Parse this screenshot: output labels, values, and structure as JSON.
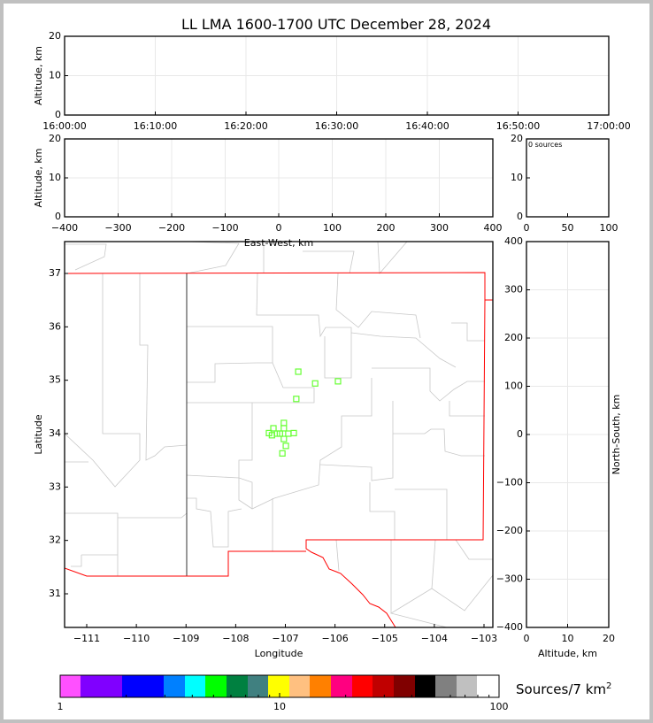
{
  "title": "LL LMA 1600-1700 UTC December 28, 2024",
  "chart_data": [
    {
      "type": "scatter",
      "panel": "altitude-vs-time",
      "ylabel": "Altitude, km",
      "ylim": [
        0,
        20
      ],
      "yticks": [
        "0",
        "10",
        "20"
      ],
      "xlim": [
        "16:00:00",
        "17:00:00"
      ],
      "xticks": [
        "16:00:00",
        "16:10:00",
        "16:20:00",
        "16:30:00",
        "16:40:00",
        "16:50:00",
        "17:00:00"
      ],
      "grid": true,
      "points": []
    },
    {
      "type": "scatter",
      "panel": "altitude-vs-east-west",
      "xlabel": "East-West, km",
      "ylabel": "Altitude, km",
      "xlim": [
        -400,
        400
      ],
      "ylim": [
        0,
        20
      ],
      "xticks": [
        "-400",
        "-300",
        "-200",
        "-100",
        "0",
        "100",
        "200",
        "300",
        "400"
      ],
      "yticks": [
        "0",
        "10",
        "20"
      ],
      "grid": true,
      "points": []
    },
    {
      "type": "histogram",
      "panel": "altitude-histogram",
      "annotation": "0 sources",
      "xlim": [
        0,
        100
      ],
      "ylim": [
        0,
        20
      ],
      "xticks": [
        "0",
        "50",
        "100"
      ],
      "yticks": [
        "0",
        "10",
        "20"
      ],
      "values": []
    },
    {
      "type": "scatter",
      "panel": "plan-view-map",
      "xlabel": "Longitude",
      "ylabel": "Latitude",
      "xlim": [
        -111.55,
        -102.95
      ],
      "ylim": [
        30.37,
        37.6
      ],
      "xticks": [
        "-111",
        "-110",
        "-109",
        "-108",
        "-107",
        "-106",
        "-105",
        "-104",
        "-103"
      ],
      "yticks": [
        "31",
        "32",
        "33",
        "34",
        "35",
        "36",
        "37"
      ],
      "marker_color": "#66ff33",
      "marker": "hollow-square",
      "points": [
        {
          "lon": -106.74,
          "lat": 35.16
        },
        {
          "lon": -106.4,
          "lat": 34.94
        },
        {
          "lon": -105.94,
          "lat": 34.98
        },
        {
          "lon": -106.78,
          "lat": 34.65
        },
        {
          "lon": -107.03,
          "lat": 34.2
        },
        {
          "lon": -107.24,
          "lat": 34.1
        },
        {
          "lon": -107.03,
          "lat": 34.1
        },
        {
          "lon": -107.33,
          "lat": 34.01
        },
        {
          "lon": -107.17,
          "lat": 34.0
        },
        {
          "lon": -107.11,
          "lat": 34.0
        },
        {
          "lon": -106.94,
          "lat": 34.0
        },
        {
          "lon": -106.83,
          "lat": 34.01
        },
        {
          "lon": -107.27,
          "lat": 33.97
        },
        {
          "lon": -107.03,
          "lat": 33.9
        },
        {
          "lon": -106.99,
          "lat": 33.77
        },
        {
          "lon": -107.06,
          "lat": 33.63
        }
      ]
    },
    {
      "type": "scatter",
      "panel": "north-south-vs-altitude",
      "xlabel": "Altitude, km",
      "ylabel": "North-South, km",
      "xlim": [
        0,
        20
      ],
      "ylim": [
        -400,
        400
      ],
      "xticks": [
        "0",
        "10",
        "20"
      ],
      "yticks": [
        "-400",
        "-300",
        "-200",
        "-100",
        "0",
        "100",
        "200",
        "300",
        "400"
      ],
      "grid": true,
      "points": []
    }
  ],
  "colorbar": {
    "label": "Sources/7 km",
    "label_sup": "2",
    "scale": "log",
    "range": [
      1,
      100
    ],
    "ticks": [
      "1",
      "10",
      "100"
    ],
    "colors": [
      "#ff50ff",
      "#8000ff",
      "#0000ff",
      "#0080ff",
      "#00ffff",
      "#00ff00",
      "#008040",
      "#408080",
      "#ffff00",
      "#ffc080",
      "#ff8000",
      "#ff0080",
      "#ff0000",
      "#c00000",
      "#800000",
      "#000000",
      "#808080",
      "#c0c0c0",
      "#ffffff"
    ]
  }
}
